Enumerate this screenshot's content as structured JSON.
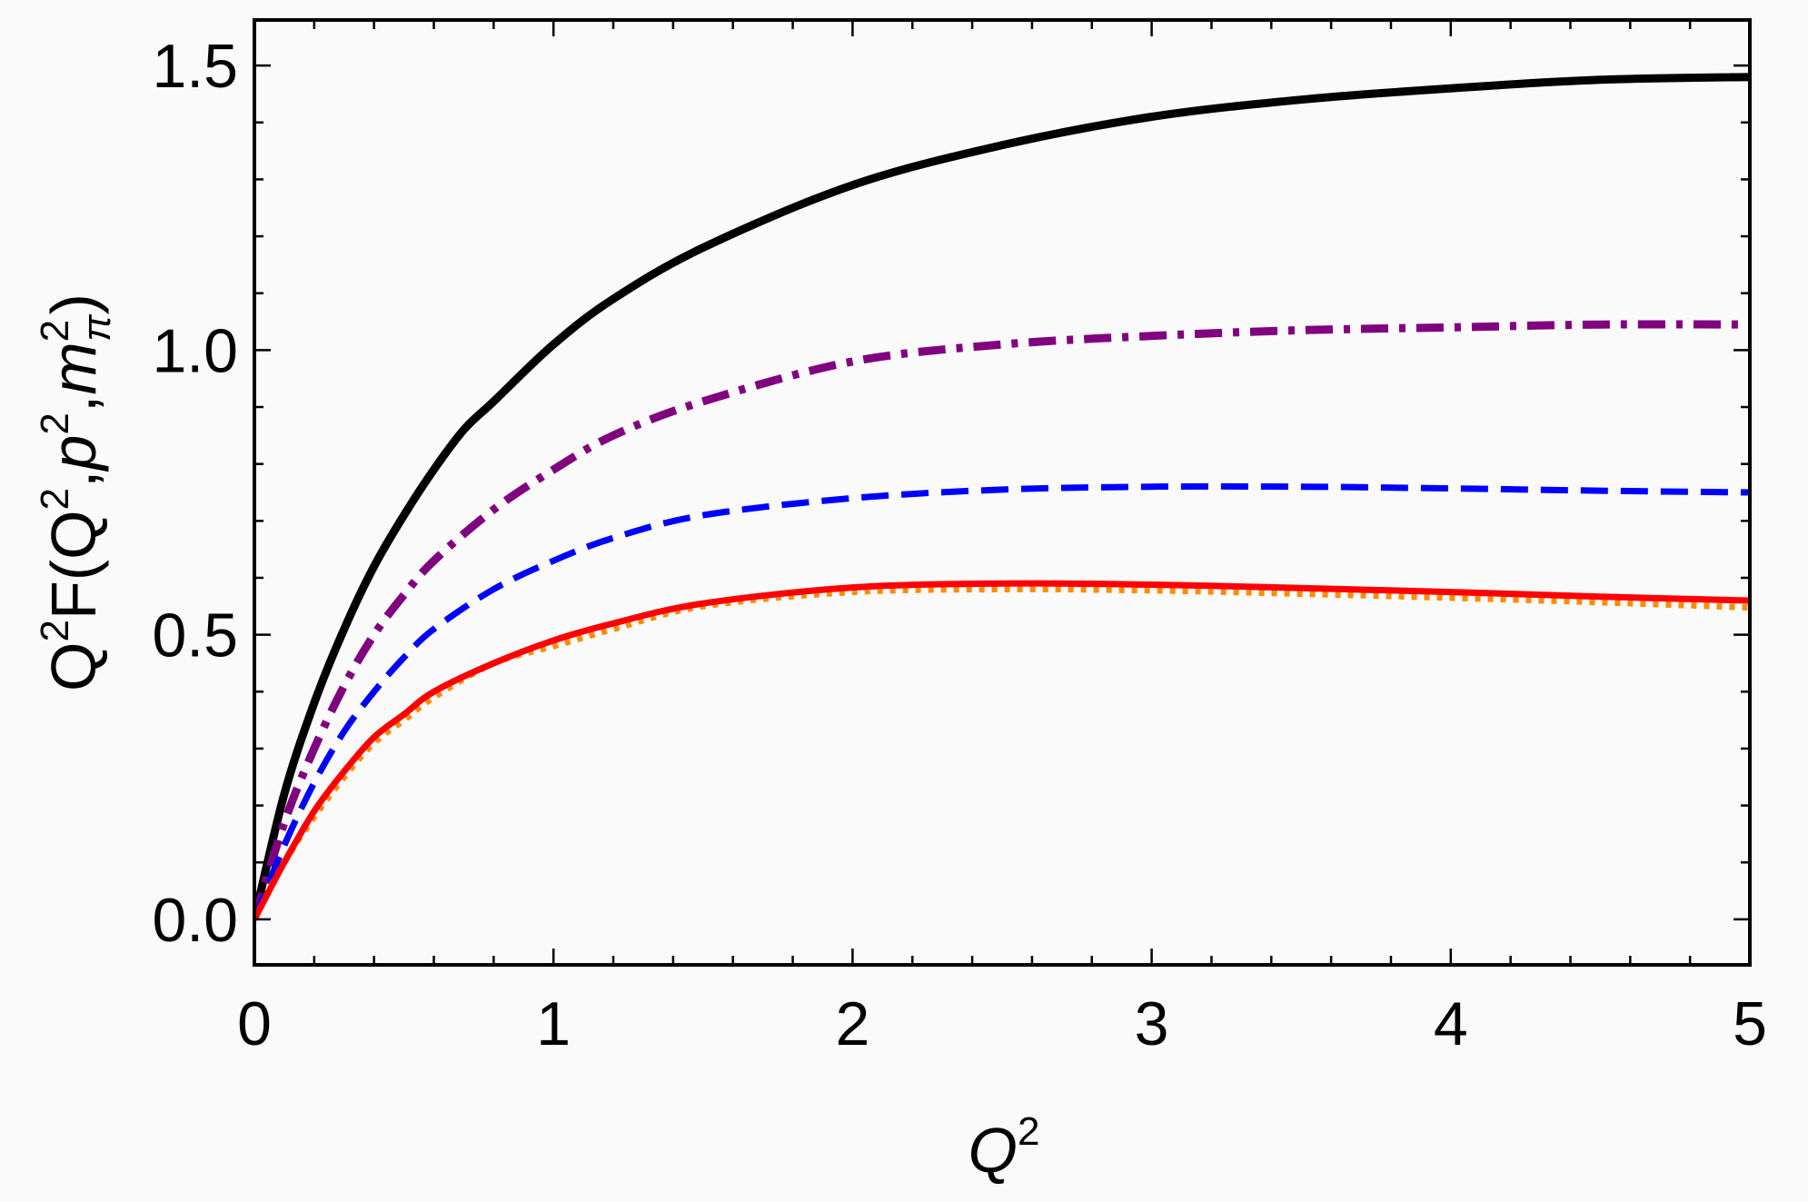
{
  "chart_data": {
    "type": "line",
    "xlabel": "Q",
    "xlabel_sup": "2",
    "ylabel": {
      "q": "Q",
      "q_sup": "2",
      "f": "F(",
      "q2": "Q",
      "q2_sup": "2",
      "sep1": ",",
      "p": "p",
      "p_sup": "2",
      "sep2": ",",
      "m": "m",
      "m_sup": "2",
      "m_sub": "π",
      "close": ")"
    },
    "xlim": [
      0,
      5
    ],
    "ylim": [
      -0.08,
      1.58
    ],
    "x_ticks": [
      "0",
      "1",
      "2",
      "3",
      "4",
      "5"
    ],
    "y_ticks": [
      "0.0",
      "0.5",
      "1.0",
      "1.5"
    ],
    "grid": false,
    "series": [
      {
        "style": "solid-thick",
        "color": "#000000",
        "x": [
          0,
          0.1,
          0.2,
          0.3,
          0.4,
          0.5,
          0.6,
          0.7,
          0.8,
          1.0,
          1.2,
          1.5,
          2.0,
          2.5,
          3.0,
          3.5,
          4.0,
          4.5,
          5.0
        ],
        "y": [
          0,
          0.22,
          0.38,
          0.51,
          0.62,
          0.71,
          0.79,
          0.86,
          0.91,
          1.01,
          1.09,
          1.18,
          1.29,
          1.36,
          1.41,
          1.44,
          1.46,
          1.475,
          1.48
        ]
      },
      {
        "style": "dash-dot",
        "color": "#800080",
        "x": [
          0,
          0.1,
          0.2,
          0.3,
          0.4,
          0.5,
          0.6,
          0.8,
          1.0,
          1.2,
          1.5,
          2.0,
          2.5,
          3.0,
          3.5,
          4.0,
          4.5,
          5.0
        ],
        "y": [
          0,
          0.17,
          0.3,
          0.41,
          0.5,
          0.57,
          0.63,
          0.72,
          0.79,
          0.85,
          0.91,
          0.98,
          1.01,
          1.025,
          1.035,
          1.04,
          1.045,
          1.045
        ]
      },
      {
        "style": "dashed",
        "color": "#0000ff",
        "x": [
          0,
          0.1,
          0.2,
          0.3,
          0.4,
          0.5,
          0.6,
          0.8,
          1.0,
          1.2,
          1.5,
          2.0,
          2.5,
          3.0,
          3.5,
          4.0,
          4.5,
          5.0
        ],
        "y": [
          0,
          0.13,
          0.24,
          0.33,
          0.4,
          0.46,
          0.51,
          0.58,
          0.63,
          0.67,
          0.71,
          0.74,
          0.755,
          0.76,
          0.76,
          0.757,
          0.753,
          0.75
        ]
      },
      {
        "style": "dotted",
        "color": "#ff8c00",
        "x": [
          0,
          0.1,
          0.2,
          0.3,
          0.4,
          0.5,
          0.6,
          0.8,
          1.0,
          1.2,
          1.5,
          2.0,
          2.5,
          3.0,
          3.5,
          4.0,
          4.5,
          5.0
        ],
        "y": [
          0,
          0.1,
          0.18,
          0.25,
          0.31,
          0.35,
          0.39,
          0.45,
          0.48,
          0.51,
          0.55,
          0.575,
          0.58,
          0.578,
          0.572,
          0.565,
          0.557,
          0.548
        ]
      },
      {
        "style": "solid",
        "color": "#ff0000",
        "x": [
          0,
          0.1,
          0.2,
          0.3,
          0.4,
          0.5,
          0.6,
          0.8,
          1.0,
          1.2,
          1.5,
          2.0,
          2.5,
          3.0,
          3.5,
          4.0,
          4.5,
          5.0
        ],
        "y": [
          0,
          0.1,
          0.19,
          0.26,
          0.32,
          0.36,
          0.4,
          0.45,
          0.49,
          0.52,
          0.555,
          0.583,
          0.59,
          0.588,
          0.582,
          0.575,
          0.567,
          0.56
        ]
      }
    ]
  }
}
